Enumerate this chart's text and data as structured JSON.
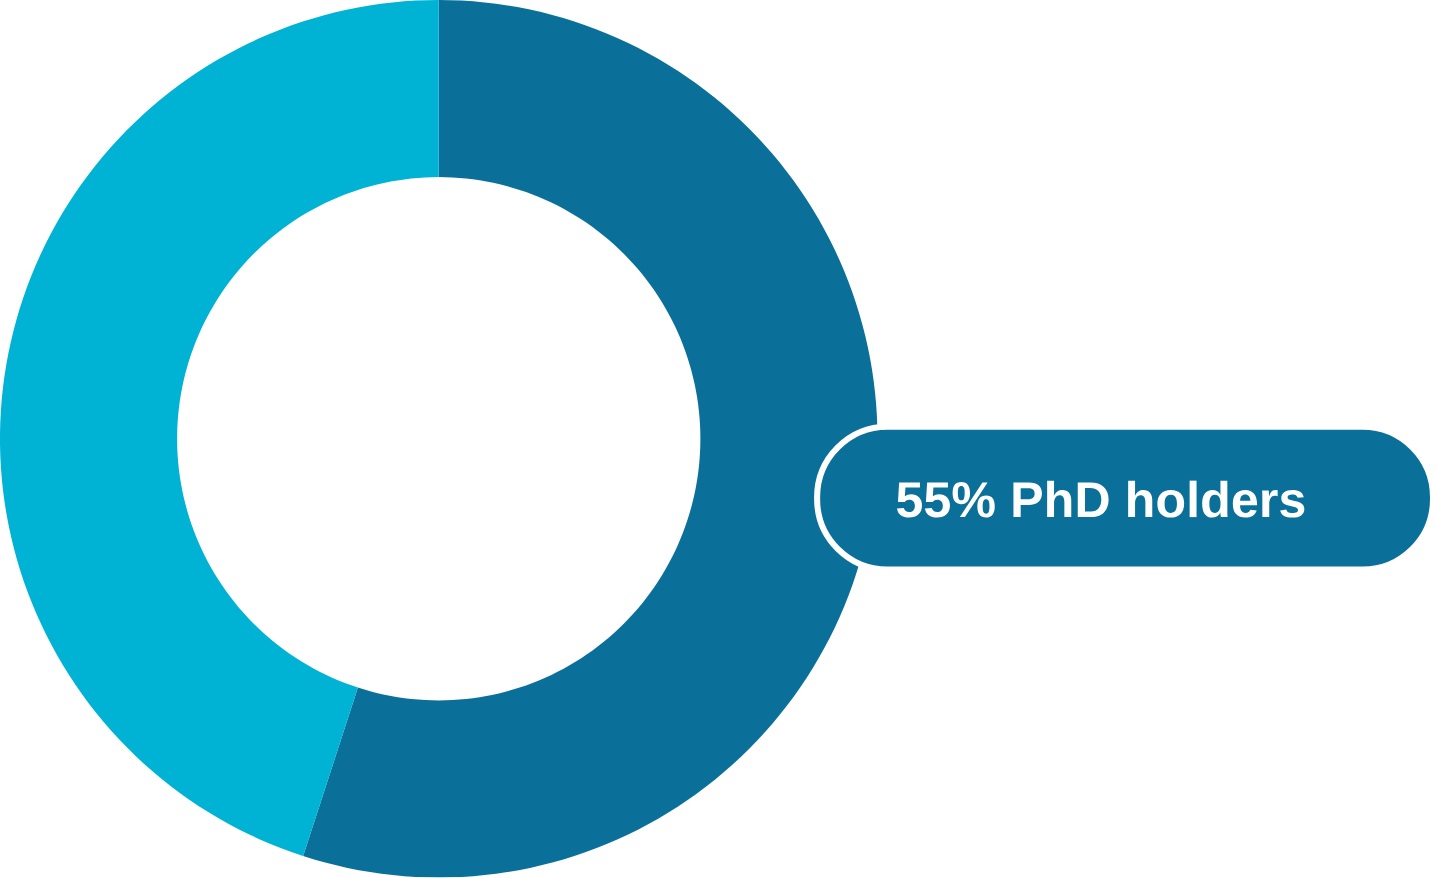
{
  "chart_data": {
    "type": "donut",
    "categories": [
      "PhD holders",
      null
    ],
    "values": [
      55,
      45
    ],
    "colors": [
      "#0b7099",
      "#00b2d3"
    ],
    "value_labels": [
      "55%",
      null
    ]
  }
}
